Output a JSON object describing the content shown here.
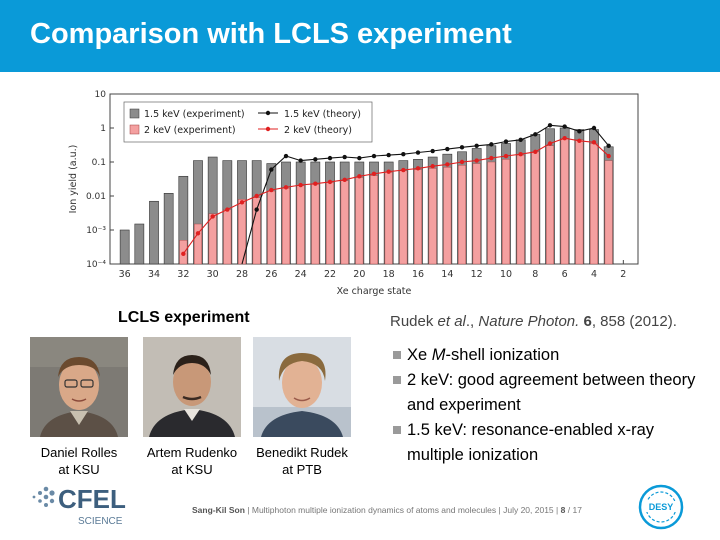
{
  "slide": {
    "title": "Comparison with LCLS experiment",
    "lcls_label": "LCLS experiment",
    "reference": {
      "authors": "Rudek",
      "etal": "et al",
      "journal": "Nature Photon.",
      "volume": "6",
      "pages_year": ", 858 (2012)."
    },
    "bullets": [
      {
        "pre": "Xe ",
        "em": "M",
        "post": "-shell ionization"
      },
      {
        "pre": "2 keV: good agreement between theory and experiment",
        "em": "",
        "post": ""
      },
      {
        "pre": "1.5 keV: resonance-enabled x-ray multiple ionization",
        "em": "",
        "post": ""
      }
    ],
    "people": [
      {
        "name": "Daniel Rolles",
        "affil": "at KSU"
      },
      {
        "name": "Artem Rudenko",
        "affil": "at KSU"
      },
      {
        "name": "Benedikt Rudek",
        "affil": "at PTB"
      }
    ],
    "footer": {
      "author": "Sang-Kil Son",
      "sep": "|",
      "talk": "Multiphoton multiple ionization dynamics of atoms and molecules",
      "date": "July 20, 2015",
      "page": "8",
      "total": "/ 17"
    },
    "logos": {
      "cfel_text": "CFEL",
      "cfel_sub": "SCIENCE",
      "desy_text": "DESY"
    },
    "colors": {
      "title_bar": "#0a9ad8",
      "exp_1_5": "#8c8c8c",
      "exp_2": "#f4a0a0",
      "theory_1_5": "#111111",
      "theory_2": "#e02020"
    }
  },
  "chart_data": {
    "type": "bar",
    "xlabel": "Xe charge state",
    "ylabel": "Ion yield (a.u.)",
    "yscale": "log",
    "ylim": [
      0.0001,
      10
    ],
    "yticks": [
      {
        "v": 10,
        "label": "10"
      },
      {
        "v": 1,
        "label": "1"
      },
      {
        "v": 0.1,
        "label": "0.1"
      },
      {
        "v": 0.01,
        "label": "0.01"
      },
      {
        "v": 0.001,
        "label": "10⁻³"
      },
      {
        "v": 0.0001,
        "label": "10⁻⁴"
      }
    ],
    "xticks": [
      36,
      34,
      32,
      30,
      28,
      26,
      24,
      22,
      20,
      18,
      16,
      14,
      12,
      10,
      8,
      6,
      4,
      2
    ],
    "x_reversed": true,
    "categories": [
      36,
      35,
      34,
      33,
      32,
      31,
      30,
      29,
      28,
      27,
      26,
      25,
      24,
      23,
      22,
      21,
      20,
      19,
      18,
      17,
      16,
      15,
      14,
      13,
      12,
      11,
      10,
      9,
      8,
      7,
      6,
      5,
      4,
      3
    ],
    "legend_position": "top-left",
    "series": [
      {
        "name": "1.5 keV (experiment)",
        "kind": "bar",
        "values": [
          0.001,
          0.0015,
          0.007,
          0.012,
          0.038,
          0.11,
          0.14,
          0.11,
          0.11,
          0.11,
          0.09,
          0.1,
          0.1,
          0.1,
          0.1,
          0.1,
          0.1,
          0.1,
          0.1,
          0.11,
          0.12,
          0.14,
          0.17,
          0.2,
          0.25,
          0.3,
          0.35,
          0.45,
          0.65,
          0.95,
          1.0,
          0.9,
          0.9,
          0.28
        ]
      },
      {
        "name": "2 keV (experiment)",
        "kind": "bar",
        "values": [
          null,
          null,
          null,
          null,
          0.0005,
          0.0015,
          0.003,
          0.004,
          0.008,
          0.009,
          0.014,
          0.017,
          0.02,
          0.022,
          0.025,
          0.028,
          0.035,
          0.04,
          0.05,
          0.055,
          0.06,
          0.065,
          0.07,
          0.08,
          0.09,
          0.1,
          0.12,
          0.16,
          0.2,
          0.3,
          0.5,
          0.45,
          0.35,
          0.11
        ]
      },
      {
        "name": "1.5 keV (theory)",
        "kind": "line",
        "values": [
          null,
          null,
          null,
          null,
          null,
          null,
          null,
          null,
          0.0001,
          0.004,
          0.06,
          0.15,
          0.11,
          0.12,
          0.13,
          0.14,
          0.13,
          0.15,
          0.16,
          0.17,
          0.19,
          0.21,
          0.24,
          0.27,
          0.3,
          0.33,
          0.4,
          0.45,
          0.65,
          1.2,
          1.1,
          0.8,
          1.0,
          0.3
        ]
      },
      {
        "name": "2 keV (theory)",
        "kind": "line",
        "values": [
          null,
          null,
          null,
          null,
          0.0002,
          0.0008,
          0.0025,
          0.004,
          0.0065,
          0.01,
          0.015,
          0.018,
          0.021,
          0.023,
          0.026,
          0.03,
          0.038,
          0.045,
          0.052,
          0.058,
          0.065,
          0.075,
          0.085,
          0.1,
          0.11,
          0.13,
          0.15,
          0.17,
          0.2,
          0.35,
          0.5,
          0.42,
          0.38,
          0.15
        ]
      }
    ]
  }
}
